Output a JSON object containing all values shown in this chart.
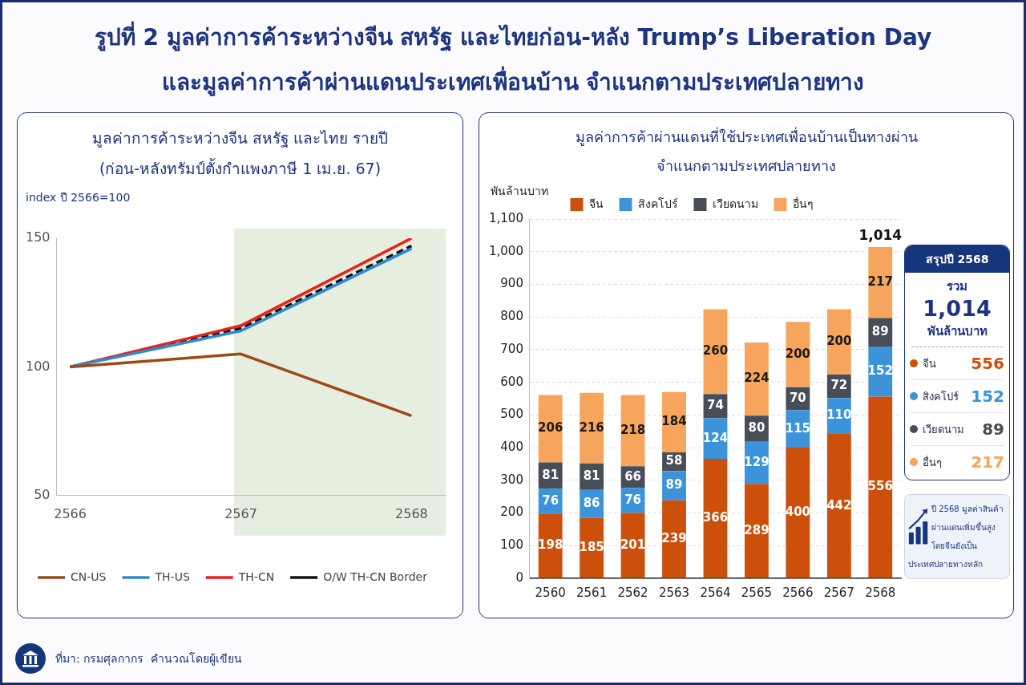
{
  "chart_data": [
    {
      "type": "other",
      "title": "รูปที่ 2 มูลค่าการค้าระหว่างจีน สหรัฐ และไทยก่อน-หลัง Trump’s Liberation Day\nและมูลค่าการค้าผ่านแดนประเทศเพื่อนบ้าน จำแนกตามประเทศปลายทาง",
      "annotations": [
        "ที่มา: กรมศุลกากร  คำนวณโดยผู้เขียน"
      ]
    },
    {
      "type": "line",
      "title": "มูลค่าการค้าระหว่างจีน สหรัฐ และไทย รายปี\n(ก่อน-หลังทรัมป์ตั้งกำแพงภาษี 1 เม.ย. 67)",
      "ylabel": "index ปี 2566=100",
      "x": [
        2566,
        2567,
        2568
      ],
      "series": [
        {
          "name": "CN-US",
          "color": "#9b4a14",
          "values": [
            100,
            105,
            81
          ]
        },
        {
          "name": "TH-US",
          "color": "#2f8ad0",
          "values": [
            100,
            114,
            146
          ]
        },
        {
          "name": "TH-CN",
          "color": "#e8231c",
          "values": [
            100,
            116,
            150
          ]
        },
        {
          "name": "O/W TH-CN Border",
          "color": "#111111",
          "values": [
            100,
            115,
            147
          ],
          "line_style": "dashed"
        }
      ],
      "xlim": [
        2565.92,
        2568.2
      ],
      "xticks": [
        2566,
        2567,
        2568
      ],
      "ylim": [
        50,
        150
      ],
      "yticks": [
        50,
        100,
        150
      ],
      "bands": [
        {
          "axis": "x",
          "from": 2566.96,
          "to": 2568.2,
          "color": "#e6eee0"
        }
      ],
      "legend": "bottom"
    },
    {
      "type": "bar",
      "title": "มูลค่าการค้าผ่านแดนที่ใช้ประเทศเพื่อนบ้านเป็นทางผ่าน\nจำแนกตามประเทศปลายทาง",
      "ylabel": "พันล้านบาท",
      "categories": [
        "2560",
        "2561",
        "2562",
        "2563",
        "2564",
        "2565",
        "2566",
        "2567",
        "2568"
      ],
      "stacked": true,
      "series": [
        {
          "name": "จีน",
          "color": "#cc4f0b",
          "values": [
            198,
            185,
            201,
            239,
            366,
            289,
            400,
            442,
            556
          ]
        },
        {
          "name": "สิงคโปร์",
          "color": "#3d93d9",
          "values": [
            76,
            86,
            76,
            89,
            124,
            129,
            115,
            110,
            152
          ]
        },
        {
          "name": "เวียดนาม",
          "color": "#474e57",
          "values": [
            81,
            81,
            66,
            58,
            74,
            80,
            70,
            72,
            89
          ]
        },
        {
          "name": "อื่นๆ",
          "color": "#f7a45c",
          "values": [
            206,
            216,
            218,
            184,
            260,
            224,
            200,
            200,
            217
          ]
        }
      ],
      "ylim": [
        0,
        1100
      ],
      "yticks": [
        0,
        100,
        200,
        300,
        400,
        500,
        600,
        700,
        800,
        900,
        {
          "value": 1000,
          "label": "1,000"
        },
        {
          "value": 1100,
          "label": "1,100"
        }
      ],
      "grid": "y",
      "legend": "top",
      "data_labels": true,
      "totals": [
        null,
        null,
        null,
        null,
        null,
        null,
        null,
        null,
        "1,014"
      ]
    },
    {
      "type": "other",
      "title": "สรุปปี 2568",
      "categories": [
        "จีน",
        "สิงคโปร์",
        "เวียดนาม",
        "อื่นๆ"
      ],
      "values": [
        556,
        152,
        89,
        217
      ],
      "data_labels": true,
      "annotations": [
        "รวม",
        "1,014",
        "พันล้านบาท",
        "ปี 2568 มูลค่าสินค้า\nผ่านแดนเพิ่มขึ้นสูง\nโดยจีนยังเป็น\nประเทศปลายทางหลัก"
      ]
    }
  ]
}
